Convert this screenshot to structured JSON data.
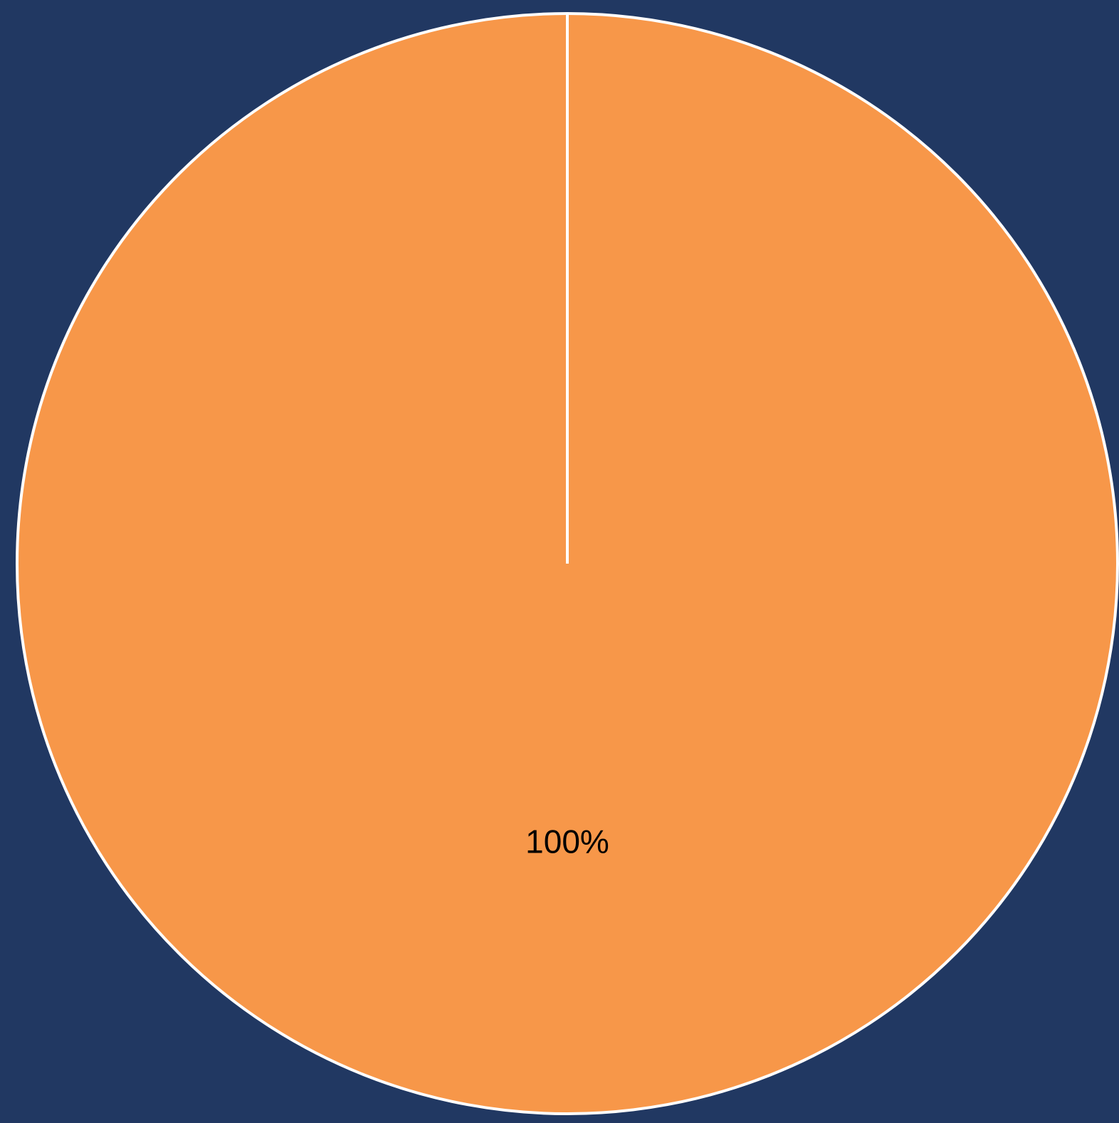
{
  "chart_data": {
    "type": "pie",
    "categories": [
      ""
    ],
    "values": [
      100
    ],
    "data_labels": [
      "100%"
    ],
    "colors": {
      "background": "#213862",
      "slice": "#F79749",
      "slice_border": "#FFFFFF",
      "label_text": "#000000"
    },
    "start_angle": "12 o'clock",
    "legend": "none"
  }
}
